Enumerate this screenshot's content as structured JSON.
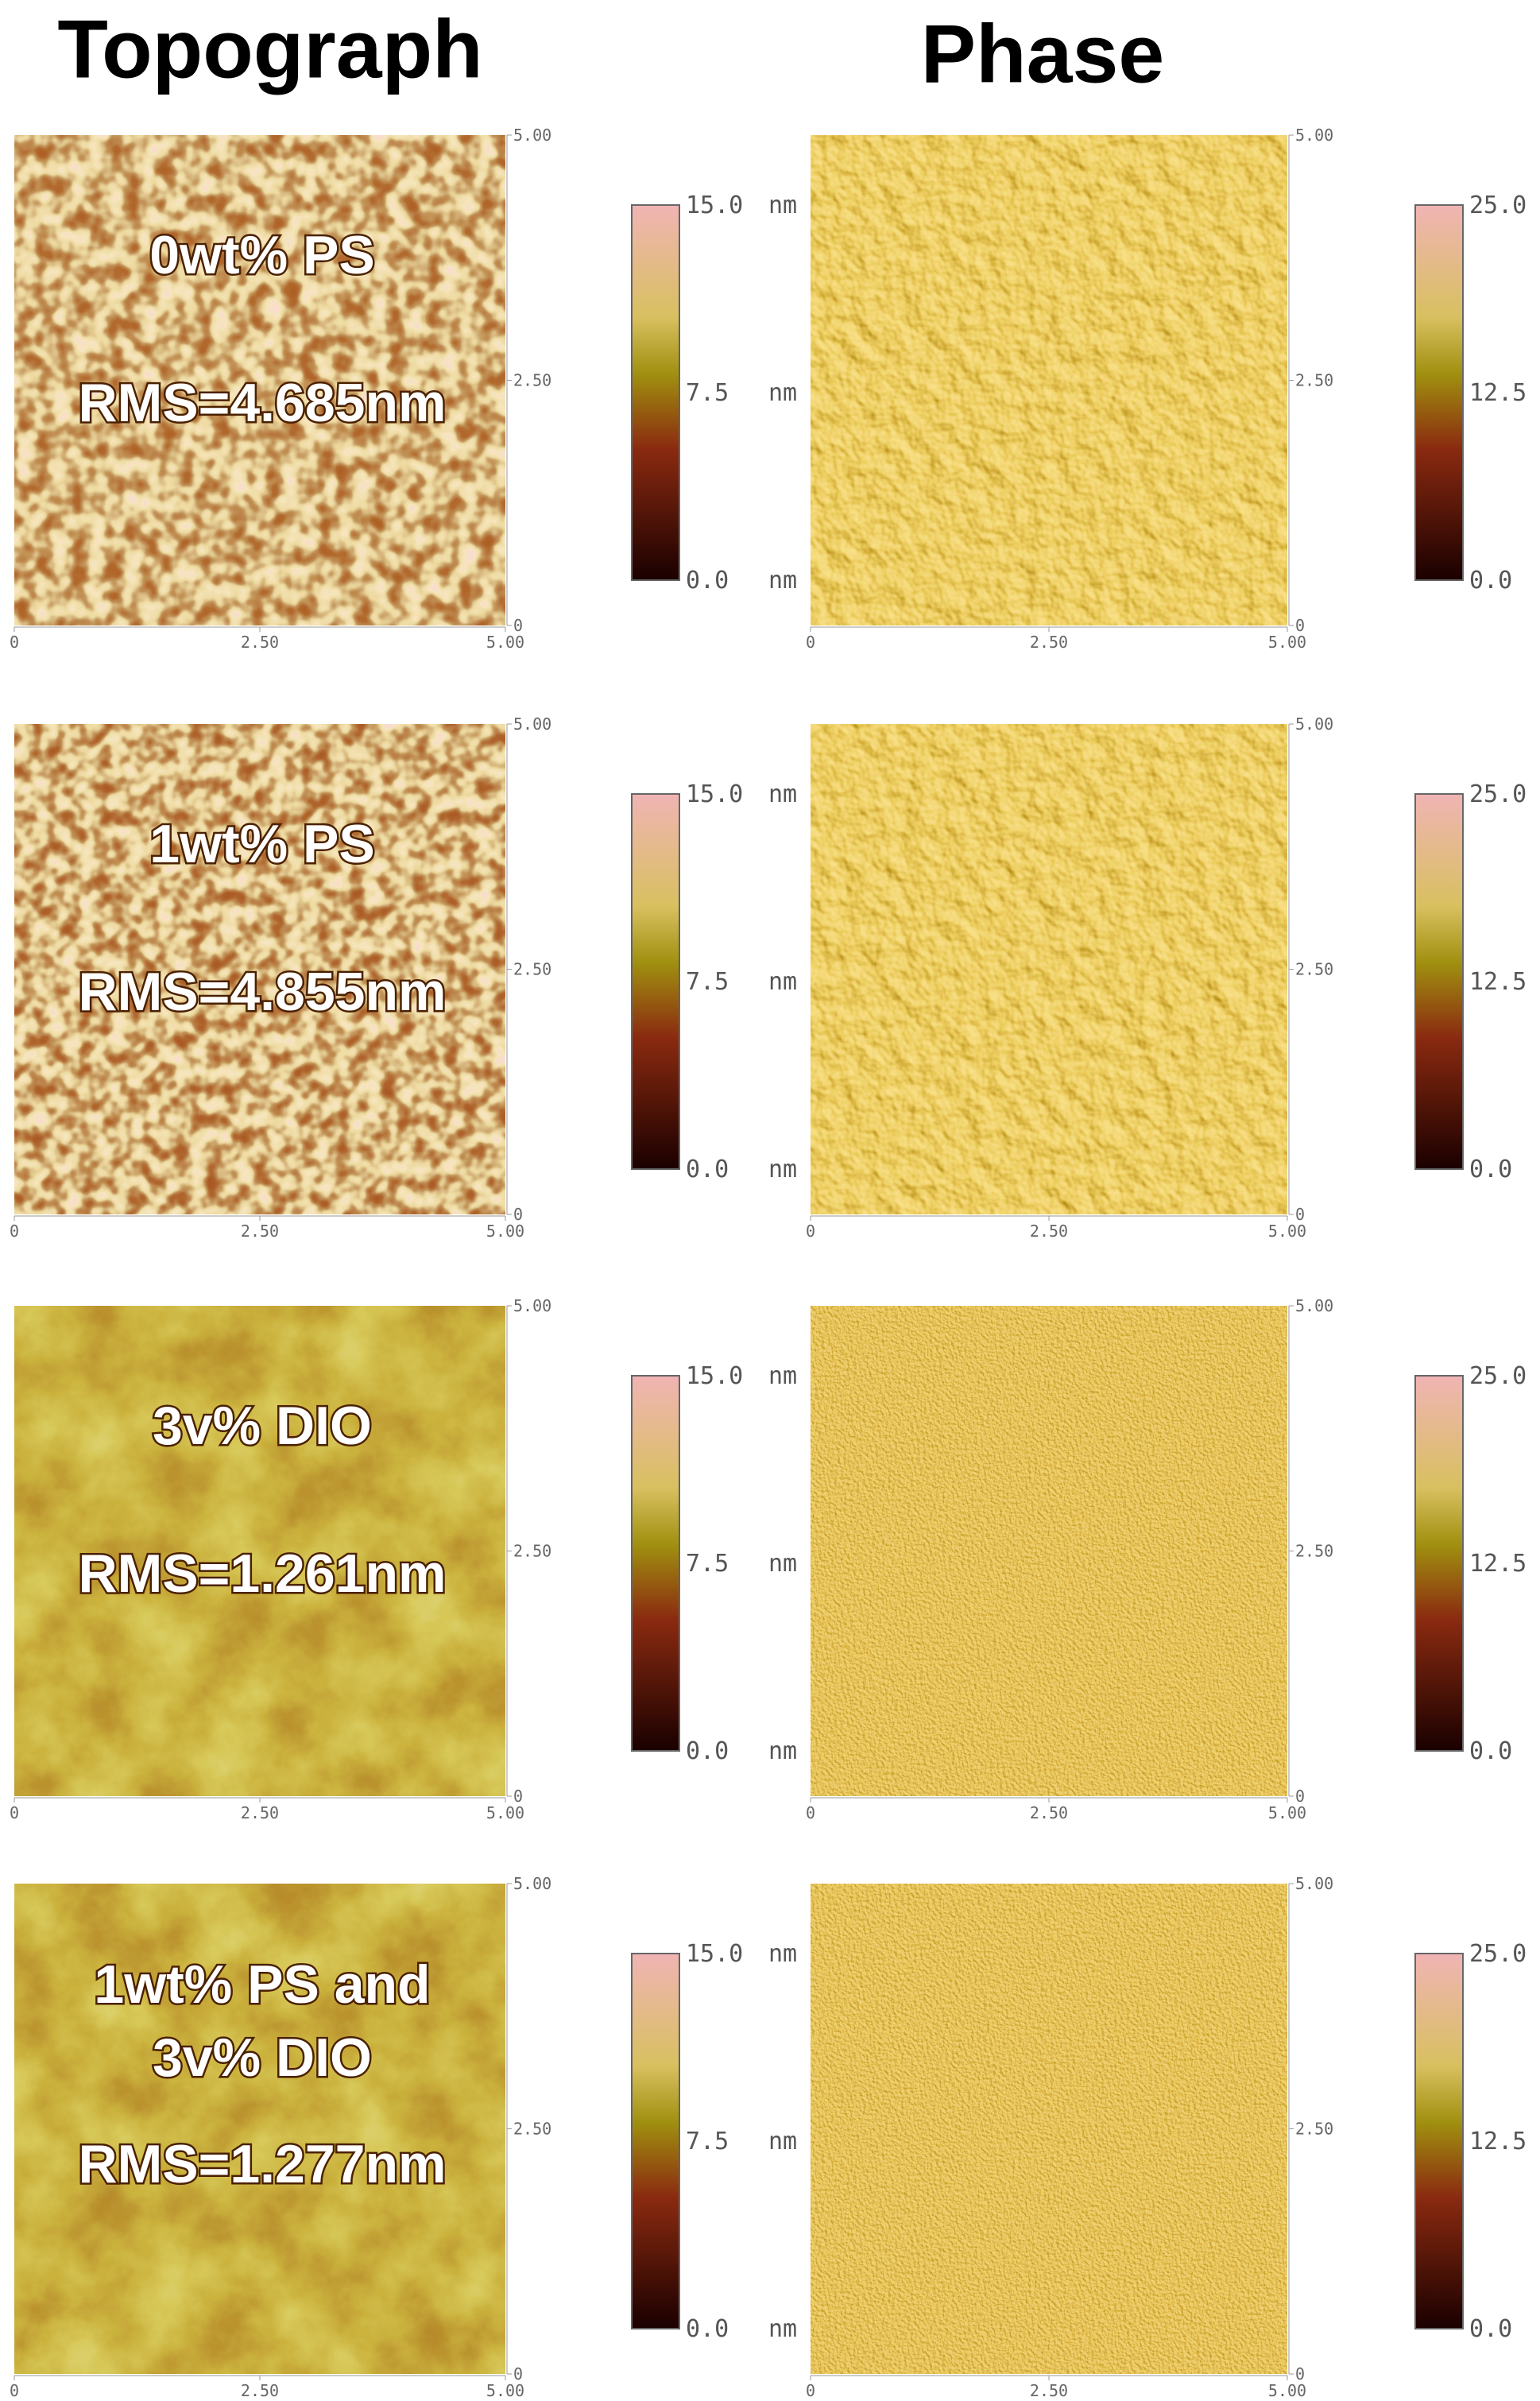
{
  "titles": {
    "topograph": "Topograph",
    "phase": "Phase"
  },
  "axis_ticks": [
    "0",
    "2.50",
    "5.00"
  ],
  "topograph_scale": {
    "labels": [
      "15.0",
      "7.5",
      "0.0"
    ],
    "unit": "nm"
  },
  "phase_scale": {
    "labels": [
      "25.0",
      "12.5",
      "0.0"
    ]
  },
  "rows": [
    {
      "sample": [
        "0wt% PS"
      ],
      "rms": "RMS=4.685nm"
    },
    {
      "sample": [
        "1wt% PS"
      ],
      "rms": "RMS=4.855nm"
    },
    {
      "sample": [
        "3v% DIO"
      ],
      "rms": "RMS=1.261nm"
    },
    {
      "sample": [
        "1wt% PS and",
        "3v% DIO"
      ],
      "rms": "RMS=1.277nm"
    }
  ]
}
